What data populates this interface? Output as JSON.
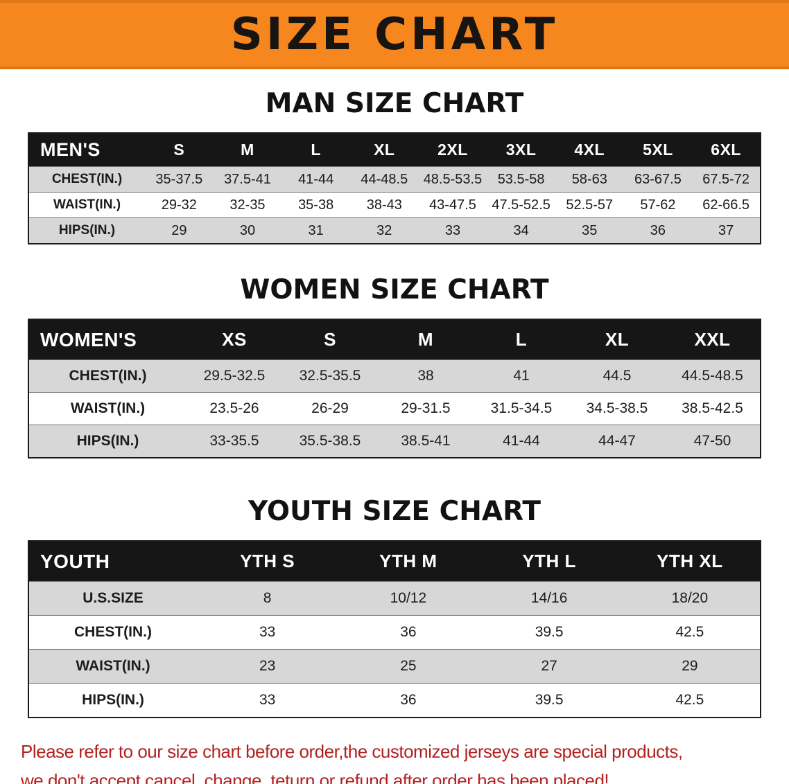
{
  "banner": {
    "title": "SIZE CHART",
    "bg_color": "#f6871f"
  },
  "sections": {
    "men": {
      "heading": "MAN SIZE CHART",
      "corner": "MEN'S",
      "columns": [
        "S",
        "M",
        "L",
        "XL",
        "2XL",
        "3XL",
        "4XL",
        "5XL",
        "6XL"
      ],
      "rows": [
        {
          "label": "CHEST(IN.)",
          "values": [
            "35-37.5",
            "37.5-41",
            "41-44",
            "44-48.5",
            "48.5-53.5",
            "53.5-58",
            "58-63",
            "63-67.5",
            "67.5-72"
          ]
        },
        {
          "label": "WAIST(IN.)",
          "values": [
            "29-32",
            "32-35",
            "35-38",
            "38-43",
            "43-47.5",
            "47.5-52.5",
            "52.5-57",
            "57-62",
            "62-66.5"
          ]
        },
        {
          "label": "HIPS(IN.)",
          "values": [
            "29",
            "30",
            "31",
            "32",
            "33",
            "34",
            "35",
            "36",
            "37"
          ]
        }
      ]
    },
    "women": {
      "heading": "WOMEN SIZE CHART",
      "corner": "WOMEN'S",
      "columns": [
        "XS",
        "S",
        "M",
        "L",
        "XL",
        "XXL"
      ],
      "rows": [
        {
          "label": "CHEST(IN.)",
          "values": [
            "29.5-32.5",
            "32.5-35.5",
            "38",
            "41",
            "44.5",
            "44.5-48.5"
          ]
        },
        {
          "label": "WAIST(IN.)",
          "values": [
            "23.5-26",
            "26-29",
            "29-31.5",
            "31.5-34.5",
            "34.5-38.5",
            "38.5-42.5"
          ]
        },
        {
          "label": "HIPS(IN.)",
          "values": [
            "33-35.5",
            "35.5-38.5",
            "38.5-41",
            "41-44",
            "44-47",
            "47-50"
          ]
        }
      ]
    },
    "youth": {
      "heading": "YOUTH SIZE CHART",
      "corner": "YOUTH",
      "columns": [
        "YTH S",
        "YTH M",
        "YTH L",
        "YTH XL"
      ],
      "rows": [
        {
          "label": "U.S.SIZE",
          "values": [
            "8",
            "10/12",
            "14/16",
            "18/20"
          ]
        },
        {
          "label": "CHEST(IN.)",
          "values": [
            "33",
            "36",
            "39.5",
            "42.5"
          ]
        },
        {
          "label": "WAIST(IN.)",
          "values": [
            "23",
            "25",
            "27",
            "29"
          ]
        },
        {
          "label": "HIPS(IN.)",
          "values": [
            "33",
            "36",
            "39.5",
            "42.5"
          ]
        }
      ]
    }
  },
  "disclaimer": {
    "line1": "Please refer to our size chart before order,the customized jerseys are special products,",
    "line2": "we don't accept cancel, change, teturn or refund after order has been placed!",
    "color": "#b22222"
  }
}
